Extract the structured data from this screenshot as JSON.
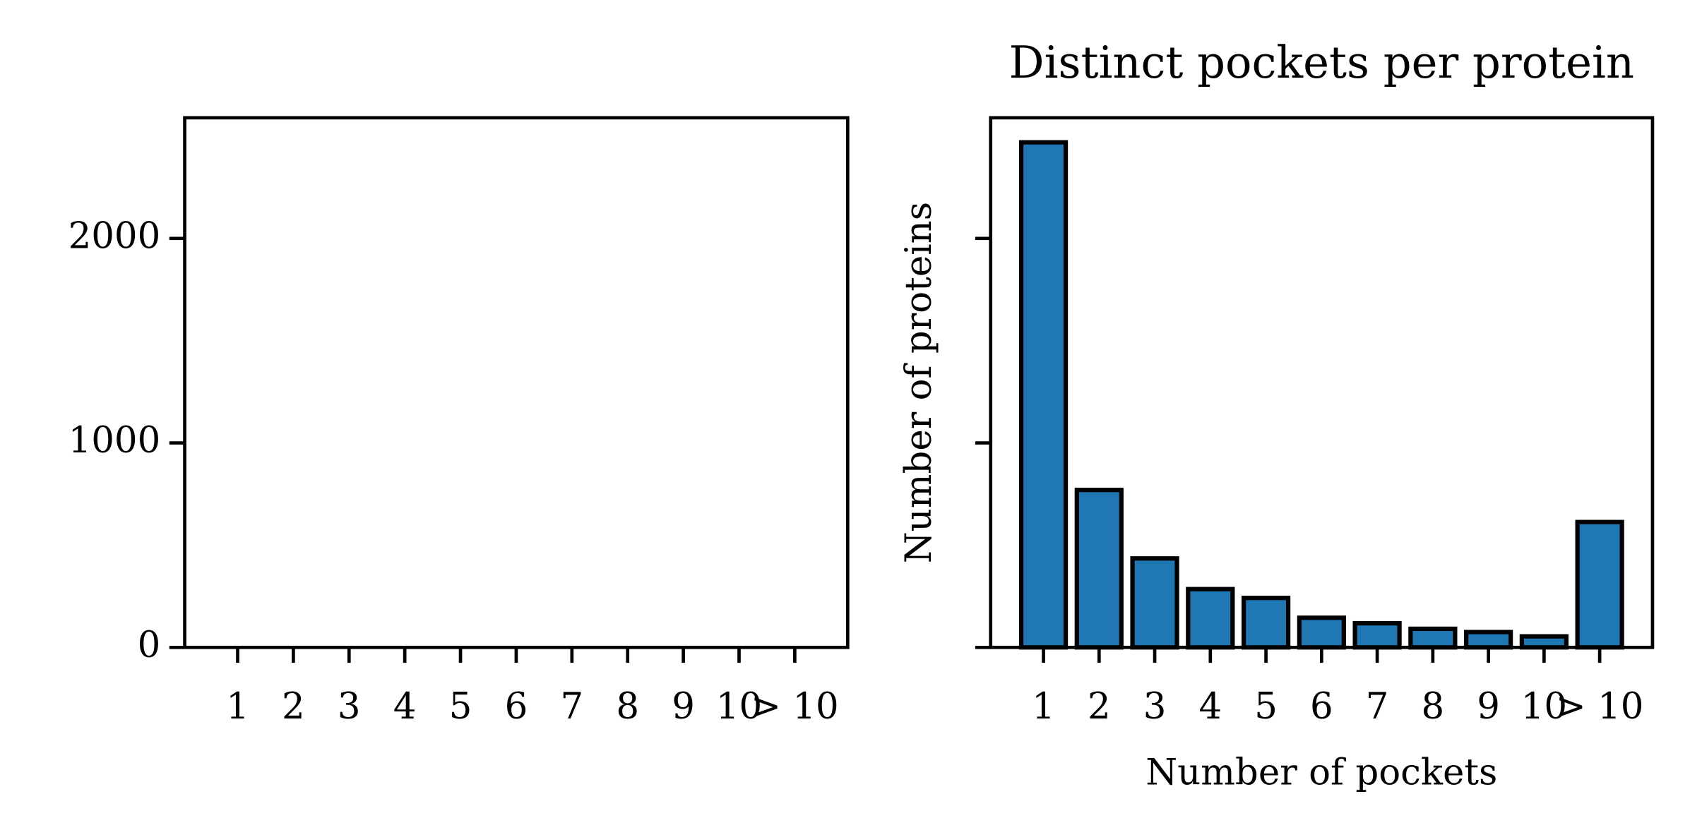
{
  "chart_data": [
    {
      "type": "bar",
      "categories": [
        "1",
        "2",
        "3",
        "4",
        "5",
        "6",
        "7",
        "8",
        "9",
        "10",
        "> 10"
      ],
      "ylim": [
        0,
        2590
      ],
      "yticks": [
        0,
        1000,
        2000
      ]
    },
    {
      "type": "bar",
      "title": "Distinct pockets per protein",
      "xlabel": "Number of pockets",
      "ylabel": "Number of proteins",
      "categories": [
        "1",
        "2",
        "3",
        "4",
        "5",
        "6",
        "7",
        "8",
        "9",
        "10",
        "> 10"
      ],
      "values": [
        2470,
        770,
        435,
        285,
        242,
        145,
        118,
        91,
        75,
        54,
        613
      ],
      "color": "#1f77b4",
      "ylim": [
        0,
        2590
      ],
      "yticks": [
        0,
        1000,
        2000
      ],
      "ytick_labels": false
    }
  ]
}
